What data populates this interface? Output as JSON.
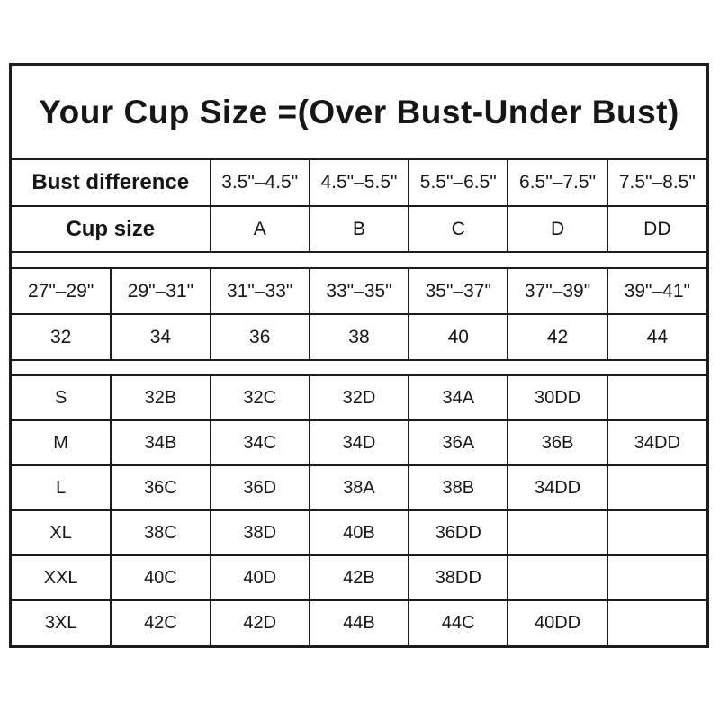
{
  "title": "Your Cup Size =(Over Bust-Under Bust)",
  "colors": {
    "border": "#1c1c1c",
    "text": "#161616",
    "background": "#ffffff"
  },
  "chart_data": [
    {
      "type": "table",
      "name": "cup-size-by-bust-difference",
      "rows": [
        {
          "header": "Bust difference",
          "cells": [
            "3.5\"–4.5\"",
            "4.5\"–5.5\"",
            "5.5\"–6.5\"",
            "6.5\"–7.5\"",
            "7.5\"–8.5\""
          ]
        },
        {
          "header": "Cup size",
          "cells": [
            "A",
            "B",
            "C",
            "D",
            "DD"
          ]
        }
      ]
    },
    {
      "type": "table",
      "name": "band-size-by-under-bust",
      "rows": [
        {
          "cells": [
            "27\"–29\"",
            "29\"–31\"",
            "31\"–33\"",
            "33\"–35\"",
            "35\"–37\"",
            "37\"–39\"",
            "39\"–41\""
          ]
        },
        {
          "cells": [
            "32",
            "34",
            "36",
            "38",
            "40",
            "42",
            "44"
          ]
        }
      ]
    },
    {
      "type": "table",
      "name": "bra-size-by-clothing-size",
      "rows": [
        {
          "header": "S",
          "cells": [
            "32B",
            "32C",
            "32D",
            "34A",
            "30DD",
            ""
          ]
        },
        {
          "header": "M",
          "cells": [
            "34B",
            "34C",
            "34D",
            "36A",
            "36B",
            "34DD"
          ]
        },
        {
          "header": "L",
          "cells": [
            "36C",
            "36D",
            "38A",
            "38B",
            "34DD",
            ""
          ]
        },
        {
          "header": "XL",
          "cells": [
            "38C",
            "38D",
            "40B",
            "36DD",
            "",
            ""
          ]
        },
        {
          "header": "XXL",
          "cells": [
            "40C",
            "40D",
            "42B",
            "38DD",
            "",
            ""
          ]
        },
        {
          "header": "3XL",
          "cells": [
            "42C",
            "42D",
            "44B",
            "44C",
            "40DD",
            ""
          ]
        }
      ]
    }
  ]
}
